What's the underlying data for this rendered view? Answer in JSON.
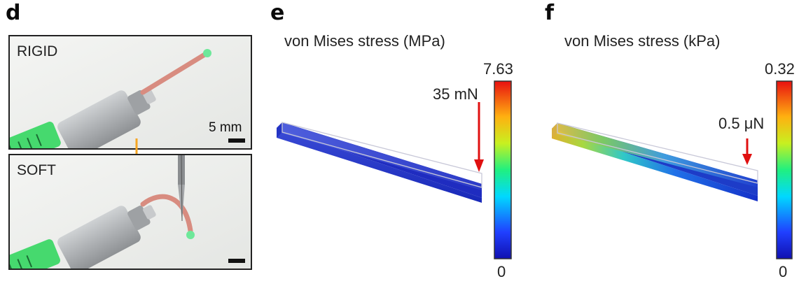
{
  "panel_d": {
    "letter": "d",
    "rigid_label": "RIGID",
    "soft_label": "SOFT",
    "scale_bar_text": "5 mm"
  },
  "panel_e": {
    "letter": "e",
    "title": "von Mises stress (MPa)",
    "colorbar_max": "7.63",
    "colorbar_min": "0",
    "force_label": "35 mN"
  },
  "panel_f": {
    "letter": "f",
    "title": "von Mises stress (kPa)",
    "colorbar_max": "0.32",
    "colorbar_min": "0",
    "force_label": "0.5 μN"
  },
  "colors": {
    "force_arrow": "#e01010",
    "transition_arrow": "#f5a623",
    "syringe_green": "#3fdc6a",
    "probe_pink": "#d98a80",
    "cylinder_gray": "#b9bcbf"
  }
}
